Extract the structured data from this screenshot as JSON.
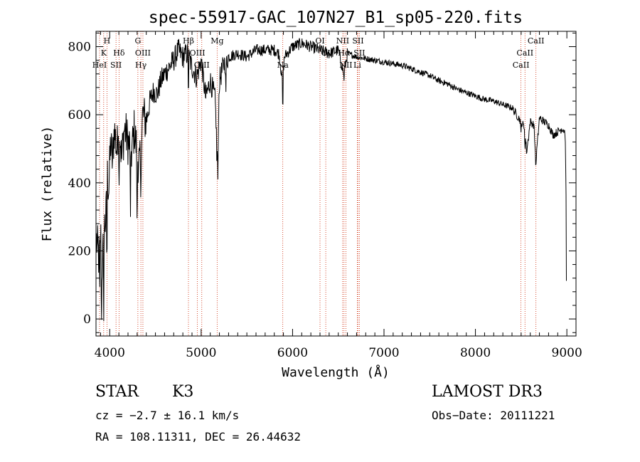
{
  "chart_data": {
    "type": "line",
    "title": "spec-55917-GAC_107N27_B1_sp05-220.fits",
    "xlabel": "Wavelength (Å)",
    "ylabel": "Flux (relative)",
    "xlim": [
      3850,
      9100
    ],
    "ylim": [
      -50,
      845
    ],
    "xticks": [
      4000,
      5000,
      6000,
      7000,
      8000,
      9000
    ],
    "yticks": [
      0,
      200,
      400,
      600,
      800
    ],
    "spectrum_anchors": [
      [
        3855,
        230
      ],
      [
        3880,
        180
      ],
      [
        3900,
        250
      ],
      [
        3920,
        160
      ],
      [
        3940,
        270
      ],
      [
        3960,
        300
      ],
      [
        3975,
        420
      ],
      [
        3990,
        380
      ],
      [
        4010,
        520
      ],
      [
        4030,
        460
      ],
      [
        4050,
        560
      ],
      [
        4080,
        490
      ],
      [
        4100,
        600
      ],
      [
        4130,
        470
      ],
      [
        4160,
        560
      ],
      [
        4200,
        520
      ],
      [
        4240,
        490
      ],
      [
        4270,
        560
      ],
      [
        4300,
        480
      ],
      [
        4330,
        450
      ],
      [
        4360,
        600
      ],
      [
        4400,
        580
      ],
      [
        4440,
        640
      ],
      [
        4480,
        670
      ],
      [
        4520,
        660
      ],
      [
        4560,
        700
      ],
      [
        4600,
        720
      ],
      [
        4650,
        740
      ],
      [
        4700,
        760
      ],
      [
        4750,
        790
      ],
      [
        4800,
        770
      ],
      [
        4850,
        780
      ],
      [
        4900,
        740
      ],
      [
        4950,
        710
      ],
      [
        5000,
        760
      ],
      [
        5050,
        650
      ],
      [
        5100,
        700
      ],
      [
        5150,
        650
      ],
      [
        5180,
        500
      ],
      [
        5200,
        700
      ],
      [
        5250,
        750
      ],
      [
        5300,
        770
      ],
      [
        5400,
        780
      ],
      [
        5500,
        770
      ],
      [
        5600,
        790
      ],
      [
        5700,
        790
      ],
      [
        5800,
        790
      ],
      [
        5850,
        780
      ],
      [
        5890,
        700
      ],
      [
        5910,
        770
      ],
      [
        6000,
        800
      ],
      [
        6100,
        810
      ],
      [
        6200,
        800
      ],
      [
        6300,
        790
      ],
      [
        6400,
        780
      ],
      [
        6500,
        790
      ],
      [
        6560,
        720
      ],
      [
        6600,
        780
      ],
      [
        6700,
        770
      ],
      [
        6800,
        765
      ],
      [
        6900,
        760
      ],
      [
        7000,
        755
      ],
      [
        7100,
        750
      ],
      [
        7200,
        745
      ],
      [
        7300,
        735
      ],
      [
        7400,
        725
      ],
      [
        7500,
        715
      ],
      [
        7600,
        700
      ],
      [
        7700,
        690
      ],
      [
        7800,
        675
      ],
      [
        7900,
        665
      ],
      [
        8000,
        655
      ],
      [
        8100,
        645
      ],
      [
        8200,
        640
      ],
      [
        8300,
        630
      ],
      [
        8400,
        620
      ],
      [
        8450,
        600
      ],
      [
        8500,
        580
      ],
      [
        8540,
        560
      ],
      [
        8560,
        490
      ],
      [
        8600,
        580
      ],
      [
        8640,
        570
      ],
      [
        8660,
        460
      ],
      [
        8700,
        590
      ],
      [
        8750,
        580
      ],
      [
        8800,
        570
      ],
      [
        8850,
        540
      ],
      [
        8900,
        550
      ],
      [
        8950,
        560
      ],
      [
        8980,
        550
      ],
      [
        8990,
        420
      ],
      [
        8995,
        100
      ]
    ],
    "dips": [
      {
        "x": 3934,
        "y": -45
      },
      {
        "x": 3969,
        "y": 120
      },
      {
        "x": 3890,
        "y": 60
      },
      {
        "x": 3910,
        "y": -45
      },
      {
        "x": 4102,
        "y": 350
      },
      {
        "x": 4227,
        "y": 300
      },
      {
        "x": 4300,
        "y": 250
      },
      {
        "x": 4340,
        "y": 320
      },
      {
        "x": 4861,
        "y": 640
      },
      {
        "x": 5172,
        "y": 450
      },
      {
        "x": 5183,
        "y": 410
      },
      {
        "x": 5270,
        "y": 650
      },
      {
        "x": 5893,
        "y": 590
      },
      {
        "x": 6563,
        "y": 700
      },
      {
        "x": 8498,
        "y": 540
      },
      {
        "x": 8542,
        "y": 490
      },
      {
        "x": 8662,
        "y": 450
      }
    ],
    "lines": [
      {
        "name": "H",
        "x": 3970,
        "row": 0
      },
      {
        "name": "K",
        "x": 3934,
        "row": 1
      },
      {
        "name": "Hδ",
        "x": 4102,
        "row": 1
      },
      {
        "name": "HeI",
        "x": 3889,
        "row": 2
      },
      {
        "name": "SII",
        "x": 4069,
        "row": 2
      },
      {
        "name": "G",
        "x": 4308,
        "row": 0
      },
      {
        "name": "OIII",
        "x": 4363,
        "row": 1
      },
      {
        "name": "Hγ",
        "x": 4341,
        "row": 2
      },
      {
        "name": "Hβ",
        "x": 4861,
        "row": 0
      },
      {
        "name": "OIII",
        "x": 4959,
        "row": 1
      },
      {
        "name": "OIII",
        "x": 5007,
        "row": 2
      },
      {
        "name": "Mg",
        "x": 5175,
        "row": 0
      },
      {
        "name": "Na",
        "x": 5893,
        "row": 2
      },
      {
        "name": "OI",
        "x": 6300,
        "row": 0
      },
      {
        "name": "OI",
        "x": 6363,
        "row": 1
      },
      {
        "name": "NII",
        "x": 6548,
        "row": 0
      },
      {
        "name": "Hα",
        "x": 6563,
        "row": 1
      },
      {
        "name": "NII",
        "x": 6583,
        "row": 2
      },
      {
        "name": "SII",
        "x": 6716,
        "row": 0
      },
      {
        "name": "SII",
        "x": 6731,
        "row": 1
      },
      {
        "name": "Li",
        "x": 6708,
        "row": 2
      },
      {
        "name": "CaII",
        "x": 8662,
        "row": 0
      },
      {
        "name": "CaII",
        "x": 8542,
        "row": 1
      },
      {
        "name": "CaII",
        "x": 8498,
        "row": 2
      }
    ]
  },
  "info": {
    "class_label": "STAR",
    "subclass": "K3",
    "survey": "LAMOST DR3",
    "cz": "cz = −2.7 ± 16.1 km/s",
    "obs_date": "Obs−Date: 20111221",
    "coords": "RA = 108.11311, DEC =  26.44632"
  },
  "colors": {
    "spectrum": "#000000",
    "line_marker": "#cc2200",
    "axes": "#000000"
  }
}
